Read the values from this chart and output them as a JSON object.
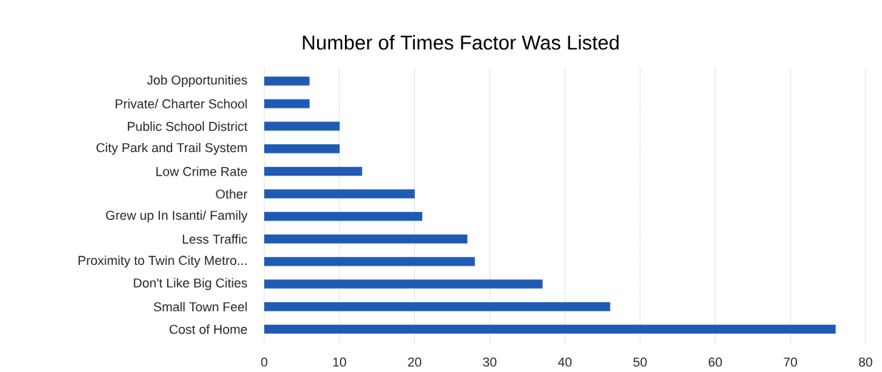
{
  "chart_data": {
    "type": "bar",
    "orientation": "horizontal",
    "title": "Number of Times Factor Was Listed",
    "categories": [
      "Job Opportunities",
      "Private/ Charter School",
      "Public School District",
      "City Park and Trail System",
      "Low Crime Rate",
      "Other",
      "Grew up In Isanti/ Family",
      "Less Traffic",
      "Proximity to Twin City Metro...",
      "Don't Like Big Cities",
      "Small Town Feel",
      "Cost of Home"
    ],
    "values": [
      6,
      6,
      10,
      10,
      13,
      20,
      21,
      27,
      28,
      37,
      46,
      76
    ],
    "color": "#1f5bb5",
    "xlim": [
      0,
      80
    ],
    "xticks": [
      0,
      10,
      20,
      30,
      40,
      50,
      60,
      70,
      80
    ],
    "grid": "x"
  }
}
